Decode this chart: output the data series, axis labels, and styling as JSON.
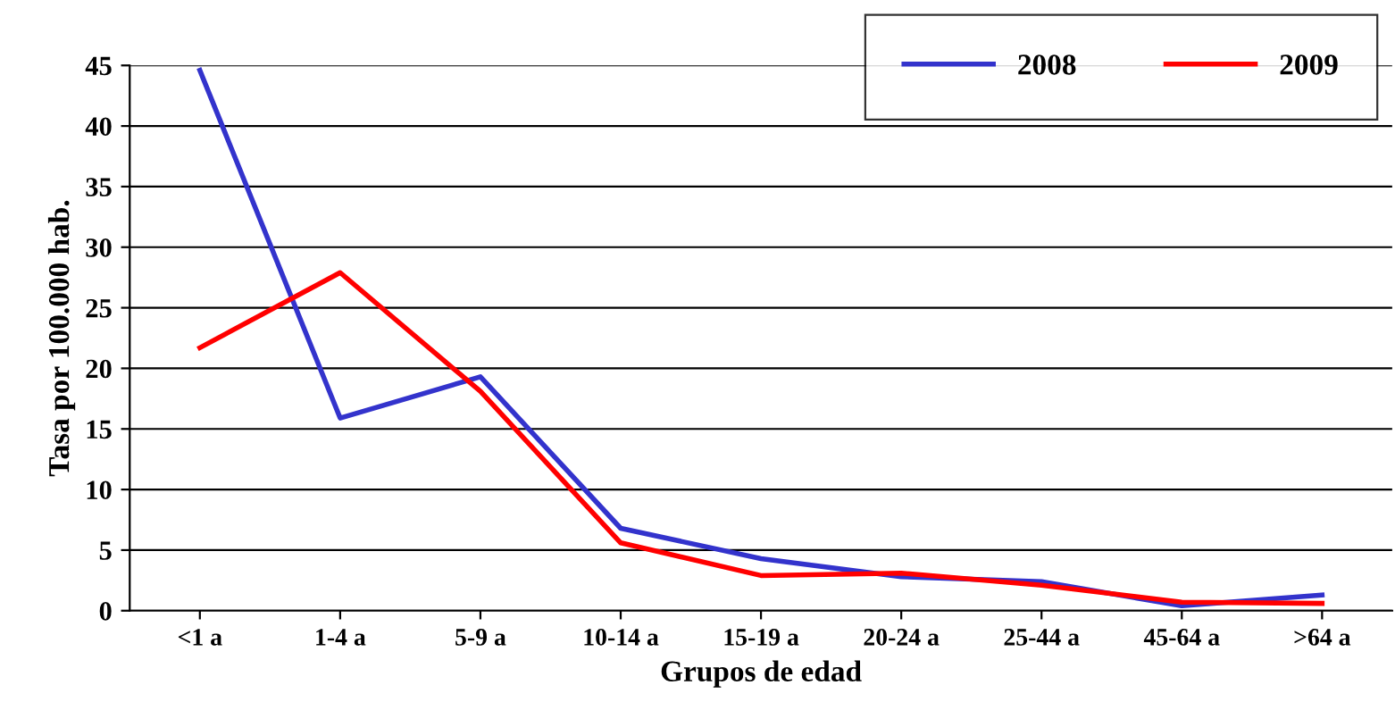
{
  "chart_data": {
    "type": "line",
    "xlabel": "Grupos de edad",
    "ylabel": "Tasa por 100.000 hab.",
    "categories": [
      "<1 a",
      "1-4 a",
      "5-9 a",
      "10-14 a",
      "15-19 a",
      "20-24 a",
      "25-44 a",
      "45-64 a",
      ">64 a"
    ],
    "series": [
      {
        "name": "2008",
        "color": "#3333cc",
        "values": [
          44.6,
          15.9,
          19.3,
          6.8,
          4.3,
          2.8,
          2.4,
          0.4,
          1.3
        ]
      },
      {
        "name": "2009",
        "color": "#ff0000",
        "values": [
          21.7,
          27.9,
          18.1,
          5.6,
          2.9,
          3.1,
          2.1,
          0.7,
          0.6
        ]
      }
    ],
    "ylim": [
      0,
      45
    ],
    "yticks": [
      0,
      5,
      10,
      15,
      20,
      25,
      30,
      35,
      40,
      45
    ],
    "grid": "y",
    "legend": "top right",
    "marker": "none",
    "line_style": "solid"
  }
}
